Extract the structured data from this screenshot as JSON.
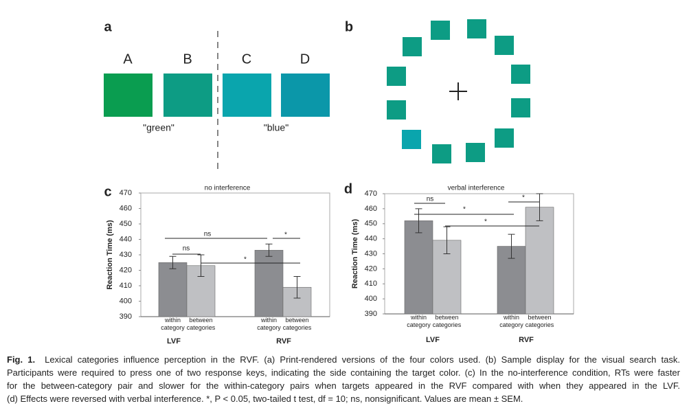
{
  "panels": {
    "a": {
      "letter": "a",
      "labels": [
        "A",
        "B",
        "C",
        "D"
      ],
      "colors": [
        "#0a9d50",
        "#0d9c84",
        "#0aa5ad",
        "#0b97a9"
      ],
      "group_labels": [
        "\"green\"",
        "\"blue\""
      ]
    },
    "b": {
      "letter": "b",
      "colors": [
        "#0d9c84",
        "#0aa5ad"
      ]
    }
  },
  "chart_data": [
    {
      "type": "bar",
      "letter": "c",
      "title": "no interference",
      "y_label": "Reaction Time (ms)",
      "categories": [
        "LVF",
        "RVF"
      ],
      "series": [
        {
          "name": "within category",
          "color": "#8c8d91",
          "values": [
            425,
            433
          ],
          "errors": [
            4,
            4
          ]
        },
        {
          "name": "between categories",
          "color": "#bfc0c3",
          "values": [
            423,
            409
          ],
          "errors": [
            7,
            7
          ]
        }
      ],
      "ylim": [
        390,
        470
      ],
      "yticks": [
        390,
        400,
        410,
        420,
        430,
        440,
        450,
        460,
        470
      ],
      "annotations": [
        "ns",
        "ns",
        "*",
        "*"
      ]
    },
    {
      "type": "bar",
      "letter": "d",
      "title": "verbal interference",
      "y_label": "Reaction Time (ms)",
      "categories": [
        "LVF",
        "RVF"
      ],
      "series": [
        {
          "name": "within category",
          "color": "#8c8d91",
          "values": [
            452,
            435
          ],
          "errors": [
            8,
            8
          ]
        },
        {
          "name": "between categories",
          "color": "#bfc0c3",
          "values": [
            439,
            461
          ],
          "errors": [
            9,
            9
          ]
        }
      ],
      "ylim": [
        390,
        470
      ],
      "yticks": [
        390,
        400,
        410,
        420,
        430,
        440,
        450,
        460,
        470
      ],
      "annotations": [
        "ns",
        "*",
        "*",
        "*"
      ]
    }
  ],
  "caption": {
    "label": "Fig. 1.",
    "lines": [
      "Lexical categories influence perception in the RVF. (a) Print-rendered versions of the four colors used. (b) Sample display for the visual search task.",
      "Participants were required to press one of two response keys, indicating the side containing the target color. (c) In the no-interference condition, RTs were faster",
      "for the between-category pair and slower for the within-category pairs when targets appeared in the RVF compared with when they appeared in the LVF.",
      "(d) Effects were reversed with verbal interference. *, P < 0.05, two-tailed t test, df = 10; ns, nonsignificant. Values are mean ± SEM."
    ]
  }
}
